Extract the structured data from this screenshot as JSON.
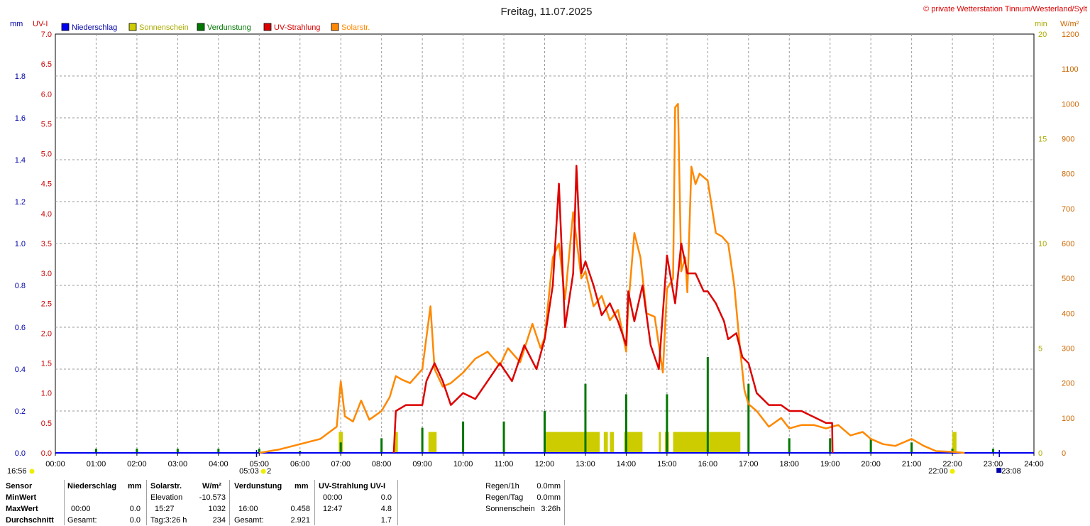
{
  "colors": {
    "niederschlag": "#0000ee",
    "sonnenschein": "#cccc00",
    "verdunstung": "#007700",
    "uv": "#dd0000",
    "solar": "#ff8800"
  },
  "chart_data": {
    "type": "line",
    "title": "Freitag, 11.07.2025",
    "copyright": "© private Wetterstation Tinnum/Westerland/Sylt",
    "legend": {
      "placement": "top-left",
      "items": [
        {
          "name": "Niederschlag",
          "color": "#0000ee"
        },
        {
          "name": "Sonnenschein",
          "color": "#cccc00"
        },
        {
          "name": "Verdunstung",
          "color": "#007700"
        },
        {
          "name": "UV-Strahlung",
          "color": "#dd0000"
        },
        {
          "name": "Solarstr.",
          "color": "#ff8800"
        }
      ]
    },
    "grid": true,
    "x_ticks": [
      "00:00",
      "01:00",
      "02:00",
      "03:00",
      "04:00",
      "05:00",
      "06:00",
      "07:00",
      "08:00",
      "09:00",
      "10:00",
      "11:00",
      "12:00",
      "13:00",
      "14:00",
      "15:00",
      "16:00",
      "17:00",
      "18:00",
      "19:00",
      "20:00",
      "21:00",
      "22:00",
      "23:00",
      "24:00"
    ],
    "axes": {
      "mm": {
        "label": "mm",
        "range": [
          0,
          2.0
        ],
        "ticks": [
          "0.0",
          "0.2",
          "0.4",
          "0.6",
          "0.8",
          "1.0",
          "1.2",
          "1.4",
          "1.6",
          "1.8"
        ]
      },
      "uv": {
        "label": "UV-I",
        "range": [
          0,
          7.0
        ],
        "ticks": [
          "0.0",
          "0.5",
          "1.0",
          "1.5",
          "2.0",
          "2.5",
          "3.0",
          "3.5",
          "4.0",
          "4.5",
          "5.0",
          "5.5",
          "6.0",
          "6.5",
          "7.0"
        ]
      },
      "min": {
        "label": "min",
        "range": [
          0,
          20
        ],
        "ticks": [
          "0",
          "5",
          "10",
          "15",
          "20"
        ]
      },
      "wm2": {
        "label": "W/m²",
        "range": [
          0,
          1200
        ],
        "ticks": [
          "0",
          "100",
          "200",
          "300",
          "400",
          "500",
          "600",
          "700",
          "800",
          "900",
          "1000",
          "1100",
          "1200"
        ]
      }
    },
    "events": {
      "sunrise": "05:03",
      "sunset": "22:00",
      "left_marker": "16:56",
      "right_marker": "23:08",
      "sunrise_suffix": "2"
    },
    "series": [
      {
        "name": "Solarstr.",
        "axis": "wm2",
        "x": [
          5.0,
          5.5,
          6.0,
          6.5,
          6.9,
          7.0,
          7.1,
          7.3,
          7.5,
          7.7,
          8.0,
          8.2,
          8.35,
          8.5,
          8.7,
          9.0,
          9.2,
          9.3,
          9.5,
          9.7,
          10.0,
          10.3,
          10.6,
          10.9,
          11.1,
          11.4,
          11.7,
          11.9,
          12.0,
          12.2,
          12.35,
          12.5,
          12.7,
          12.9,
          13.0,
          13.2,
          13.4,
          13.6,
          13.8,
          14.0,
          14.05,
          14.2,
          14.35,
          14.5,
          14.7,
          14.9,
          15.0,
          15.15,
          15.2,
          15.27,
          15.35,
          15.45,
          15.5,
          15.6,
          15.7,
          15.8,
          16.0,
          16.2,
          16.35,
          16.5,
          16.65,
          16.8,
          16.9,
          17.0,
          17.2,
          17.5,
          17.8,
          18.0,
          18.3,
          18.6,
          18.9,
          19.2,
          19.5,
          19.8,
          20.0,
          20.3,
          20.6,
          21.0,
          21.3,
          21.6,
          22.0,
          22.3
        ],
        "values": [
          0,
          10,
          25,
          40,
          75,
          205,
          105,
          90,
          150,
          95,
          120,
          160,
          220,
          210,
          200,
          240,
          420,
          240,
          190,
          200,
          230,
          270,
          290,
          250,
          300,
          260,
          370,
          300,
          330,
          560,
          600,
          440,
          690,
          500,
          520,
          420,
          450,
          380,
          410,
          290,
          420,
          630,
          560,
          400,
          390,
          230,
          470,
          500,
          990,
          1000,
          520,
          560,
          460,
          820,
          770,
          800,
          780,
          630,
          620,
          600,
          480,
          290,
          180,
          140,
          120,
          75,
          100,
          70,
          80,
          80,
          70,
          80,
          50,
          60,
          40,
          25,
          20,
          40,
          20,
          5,
          3,
          0
        ]
      },
      {
        "name": "UV-Strahlung",
        "axis": "uv",
        "x": [
          8.3,
          8.35,
          8.6,
          9.0,
          9.1,
          9.3,
          9.5,
          9.7,
          10.0,
          10.3,
          10.6,
          10.9,
          11.2,
          11.5,
          11.8,
          12.0,
          12.2,
          12.35,
          12.5,
          12.7,
          12.78,
          12.9,
          13.0,
          13.2,
          13.4,
          13.6,
          13.8,
          14.0,
          14.05,
          14.2,
          14.4,
          14.6,
          14.8,
          15.0,
          15.2,
          15.35,
          15.5,
          15.7,
          15.9,
          16.0,
          16.2,
          16.4,
          16.5,
          16.7,
          16.85,
          17.0,
          17.2,
          17.5,
          17.8,
          18.0,
          18.3,
          18.6,
          18.9,
          19.05,
          19.06
        ],
        "values": [
          0,
          0.7,
          0.8,
          0.8,
          1.2,
          1.5,
          1.2,
          0.8,
          1.0,
          0.9,
          1.2,
          1.5,
          1.2,
          1.8,
          1.4,
          1.9,
          2.8,
          4.5,
          2.1,
          3.0,
          4.8,
          3.0,
          3.2,
          2.8,
          2.3,
          2.5,
          2.2,
          1.8,
          2.7,
          2.2,
          2.8,
          1.8,
          1.4,
          3.3,
          2.5,
          3.5,
          3.0,
          3.0,
          2.7,
          2.7,
          2.5,
          2.2,
          1.9,
          2.0,
          1.6,
          1.5,
          1.0,
          0.8,
          0.8,
          0.7,
          0.7,
          0.6,
          0.5,
          0.5,
          0
        ]
      },
      {
        "name": "Verdunstung",
        "axis": "mm",
        "x": [
          1.0,
          2.0,
          3.0,
          4.0,
          5.0,
          6.0,
          7.0,
          8.0,
          9.0,
          10.0,
          11.0,
          12.0,
          13.0,
          14.0,
          15.0,
          16.0,
          17.0,
          18.0,
          19.0,
          20.0,
          21.0,
          22.0,
          23.0
        ],
        "values": [
          0.02,
          0.02,
          0.02,
          0.02,
          0.02,
          0.01,
          0.05,
          0.07,
          0.12,
          0.15,
          0.15,
          0.2,
          0.33,
          0.28,
          0.28,
          0.458,
          0.33,
          0.07,
          0.07,
          0.07,
          0.05,
          0.02,
          0.02
        ]
      },
      {
        "name": "Sonnenschein",
        "axis": "min",
        "intervals": [
          [
            6.95,
            7.05
          ],
          [
            8.3,
            8.4
          ],
          [
            9.15,
            9.35
          ],
          [
            12.0,
            13.35
          ],
          [
            13.45,
            13.55
          ],
          [
            13.6,
            13.7
          ],
          [
            13.95,
            14.4
          ],
          [
            14.8,
            14.85
          ],
          [
            14.95,
            15.05
          ],
          [
            15.15,
            16.8
          ],
          [
            22.0,
            22.1
          ]
        ],
        "value": 1
      },
      {
        "name": "Niederschlag",
        "axis": "mm",
        "x": [
          0,
          24
        ],
        "values": [
          0,
          0
        ]
      }
    ]
  },
  "table": {
    "headers": {
      "sensor": "Sensor",
      "niederschlag": "Niederschlag",
      "niederschlag_unit": "mm",
      "solar": "Solarstr.",
      "solar_unit": "W/m²",
      "verdunstung": "Verdunstung",
      "verdunstung_unit": "mm",
      "uv": "UV-Strahlung UV-I"
    },
    "rows": {
      "minwert": {
        "label": "MinWert",
        "solar_label": "Elevation",
        "solar_value": "-10.573",
        "uv_time": "00:00",
        "uv_value": "0.0"
      },
      "maxwert": {
        "label": "MaxWert",
        "n_time": "00:00",
        "n_value": "0.0",
        "solar_time": "15:27",
        "solar_value": "1032",
        "v_time": "16:00",
        "v_value": "0.458",
        "uv_time": "12:47",
        "uv_value": "4.8"
      },
      "durchschnitt": {
        "label": "Durchschnitt",
        "n_label": "Gesamt:",
        "n_value": "0.0",
        "solar_label": "Tag:3:26 h",
        "solar_value": "234",
        "v_label": "Gesamt:",
        "v_value": "2.921",
        "uv_value": "1.7"
      }
    },
    "summary": [
      {
        "label": "Regen/1h",
        "value": "0.0mm"
      },
      {
        "label": "Regen/Tag",
        "value": "0.0mm"
      },
      {
        "label": "Sonnenschein",
        "value": "3:26h"
      }
    ]
  }
}
